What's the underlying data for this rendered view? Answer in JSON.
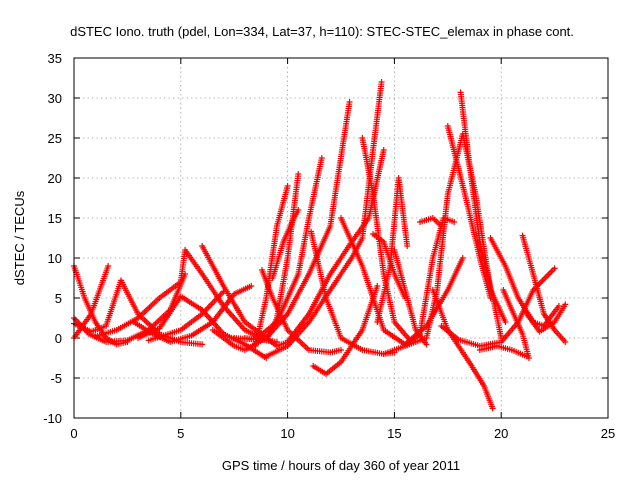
{
  "chart_data": {
    "type": "scatter",
    "title": "dSTEC Iono. truth (pdel, Lon=334, Lat=37, h=110): STEC-STEC_elemax in phase cont.",
    "xlabel": "GPS time / hours of day 360 of year 2011",
    "ylabel": "dSTEC  / TECUs",
    "xlim": [
      0,
      25
    ],
    "ylim": [
      -10,
      35
    ],
    "xticks": [
      0,
      5,
      10,
      15,
      20,
      25
    ],
    "yticks": [
      -10,
      -5,
      0,
      5,
      10,
      15,
      20,
      25,
      30,
      35
    ],
    "grid": true,
    "marker": "+",
    "color": "#ff0000",
    "series": [
      {
        "points": [
          [
            0.0,
            9.0
          ],
          [
            0.5,
            5.0
          ],
          [
            1.0,
            2.0
          ],
          [
            1.5,
            0.0
          ],
          [
            2.0,
            -0.8
          ],
          [
            2.5,
            -0.5
          ]
        ]
      },
      {
        "points": [
          [
            0.0,
            2.5
          ],
          [
            0.7,
            0.5
          ],
          [
            1.5,
            -0.5
          ],
          [
            2.5,
            -0.3
          ],
          [
            3.5,
            1.0
          ],
          [
            4.5,
            3.5
          ],
          [
            5.2,
            8.0
          ]
        ]
      },
      {
        "points": [
          [
            0.0,
            0.0
          ],
          [
            0.8,
            3.0
          ],
          [
            1.6,
            9.0
          ]
        ]
      },
      {
        "points": [
          [
            0.0,
            1.8
          ],
          [
            0.8,
            0.8
          ],
          [
            1.5,
            1.5
          ],
          [
            2.2,
            7.2
          ],
          [
            3.0,
            3.0
          ],
          [
            4.0,
            0.5
          ],
          [
            5.0,
            -0.5
          ],
          [
            6.0,
            -0.8
          ]
        ]
      },
      {
        "points": [
          [
            1.0,
            0.2
          ],
          [
            2.0,
            1.0
          ],
          [
            3.0,
            2.5
          ],
          [
            4.0,
            5.0
          ],
          [
            5.0,
            7.0
          ],
          [
            5.2,
            11.0
          ],
          [
            6.0,
            8.0
          ],
          [
            7.0,
            4.0
          ],
          [
            8.0,
            1.0
          ],
          [
            9.0,
            -0.3
          ],
          [
            9.5,
            -0.5
          ]
        ]
      },
      {
        "points": [
          [
            2.8,
            2.0
          ],
          [
            3.5,
            0.8
          ],
          [
            4.5,
            -0.5
          ],
          [
            5.5,
            0.3
          ],
          [
            6.5,
            2.0
          ],
          [
            7.5,
            5.5
          ],
          [
            8.3,
            6.5
          ]
        ]
      },
      {
        "points": [
          [
            3.0,
            0.0
          ],
          [
            4.0,
            1.2
          ],
          [
            5.0,
            5.2
          ],
          [
            6.0,
            3.5
          ],
          [
            7.0,
            0.5
          ],
          [
            8.0,
            -0.8
          ],
          [
            9.0,
            -2.5
          ]
        ]
      },
      {
        "points": [
          [
            3.5,
            -0.3
          ],
          [
            5.0,
            1.0
          ],
          [
            6.0,
            3.0
          ],
          [
            7.0,
            5.8
          ]
        ]
      },
      {
        "points": [
          [
            6.0,
            11.5
          ],
          [
            7.0,
            6.5
          ],
          [
            8.0,
            2.0
          ],
          [
            9.0,
            0.0
          ],
          [
            9.5,
            -1.0
          ]
        ]
      },
      {
        "points": [
          [
            6.5,
            1.0
          ],
          [
            7.5,
            -1.0
          ],
          [
            8.0,
            -1.5
          ],
          [
            9.0,
            0.0
          ],
          [
            10.0,
            3.0
          ],
          [
            11.0,
            8.0
          ],
          [
            12.0,
            14.0
          ],
          [
            12.9,
            29.5
          ]
        ]
      },
      {
        "points": [
          [
            7.5,
            0.0
          ],
          [
            8.5,
            -0.2
          ],
          [
            9.5,
            2.0
          ],
          [
            10.5,
            8.0
          ],
          [
            11.0,
            15.0
          ],
          [
            11.6,
            22.5
          ]
        ]
      },
      {
        "points": [
          [
            8.0,
            0.0
          ],
          [
            9.0,
            -0.3
          ],
          [
            9.5,
            2.5
          ],
          [
            10.0,
            10.0
          ],
          [
            10.5,
            20.5
          ]
        ]
      },
      {
        "points": [
          [
            8.5,
            -1.0
          ],
          [
            9.0,
            5.0
          ],
          [
            9.5,
            14.0
          ],
          [
            10.0,
            19.0
          ]
        ]
      },
      {
        "points": [
          [
            9.5,
            -1.0
          ],
          [
            10.0,
            -0.5
          ],
          [
            11.0,
            3.0
          ],
          [
            12.0,
            8.0
          ],
          [
            13.0,
            12.0
          ],
          [
            13.8,
            15.0
          ],
          [
            14.5,
            23.5
          ]
        ]
      },
      {
        "points": [
          [
            9.0,
            -2.3
          ],
          [
            10.0,
            -1.0
          ],
          [
            11.0,
            2.0
          ],
          [
            12.0,
            6.0
          ],
          [
            13.0,
            10.0
          ],
          [
            13.5,
            12.5
          ],
          [
            14.0,
            23.5
          ],
          [
            14.4,
            32.0
          ]
        ]
      },
      {
        "points": [
          [
            9.3,
            7.5
          ],
          [
            9.8,
            12.0
          ],
          [
            10.3,
            15.0
          ],
          [
            10.5,
            16.0
          ]
        ]
      },
      {
        "points": [
          [
            8.8,
            8.5
          ],
          [
            9.3,
            5.0
          ],
          [
            10.0,
            1.0
          ],
          [
            11.0,
            -1.5
          ],
          [
            12.0,
            -1.8
          ],
          [
            12.5,
            -1.5
          ]
        ]
      },
      {
        "points": [
          [
            11.2,
            -3.5
          ],
          [
            11.8,
            -4.5
          ],
          [
            12.5,
            -3.0
          ],
          [
            13.5,
            1.0
          ],
          [
            14.2,
            6.5
          ]
        ]
      },
      {
        "points": [
          [
            11.1,
            13.3
          ],
          [
            11.8,
            5.0
          ],
          [
            12.5,
            0.0
          ],
          [
            13.5,
            -1.5
          ],
          [
            14.5,
            -2.0
          ],
          [
            15.0,
            -1.8
          ]
        ]
      },
      {
        "points": [
          [
            12.5,
            15.0
          ],
          [
            13.5,
            9.0
          ],
          [
            14.5,
            1.0
          ],
          [
            15.5,
            -0.8
          ],
          [
            16.5,
            1.5
          ],
          [
            17.5,
            6.0
          ],
          [
            18.2,
            10.0
          ]
        ]
      },
      {
        "points": [
          [
            13.5,
            25.0
          ],
          [
            14.0,
            18.0
          ],
          [
            14.5,
            8.0
          ],
          [
            15.0,
            2.0
          ],
          [
            15.8,
            -0.5
          ]
        ]
      },
      {
        "points": [
          [
            14.0,
            13.0
          ],
          [
            14.5,
            12.0
          ],
          [
            15.0,
            8.0
          ],
          [
            15.5,
            5.0
          ]
        ]
      },
      {
        "points": [
          [
            14.2,
            2.0
          ],
          [
            14.8,
            9.0
          ],
          [
            15.2,
            20.0
          ],
          [
            15.6,
            11.5
          ]
        ]
      },
      {
        "points": [
          [
            14.5,
            -2.0
          ],
          [
            15.5,
            -1.0
          ],
          [
            16.5,
            0.0
          ],
          [
            17.0,
            6.0
          ],
          [
            17.5,
            18.0
          ],
          [
            18.2,
            25.5
          ],
          [
            18.8,
            18.0
          ],
          [
            19.5,
            6.0
          ],
          [
            20.2,
            2.0
          ]
        ]
      },
      {
        "points": [
          [
            15.5,
            -1.0
          ],
          [
            16.2,
            0.5
          ],
          [
            16.8,
            10.0
          ],
          [
            17.3,
            15.0
          ],
          [
            17.8,
            14.5
          ]
        ]
      },
      {
        "points": [
          [
            16.2,
            14.5
          ],
          [
            16.8,
            15.0
          ],
          [
            17.2,
            14.0
          ]
        ]
      },
      {
        "points": [
          [
            15.0,
            11.0
          ],
          [
            15.5,
            6.0
          ],
          [
            16.0,
            1.0
          ],
          [
            16.5,
            -0.8
          ]
        ]
      },
      {
        "points": [
          [
            17.2,
            1.5
          ],
          [
            18.0,
            -0.2
          ],
          [
            19.0,
            -1.0
          ],
          [
            20.0,
            -0.5
          ],
          [
            20.8,
            2.0
          ],
          [
            21.5,
            6.0
          ],
          [
            22.5,
            8.7
          ]
        ]
      },
      {
        "points": [
          [
            18.1,
            30.7
          ],
          [
            18.5,
            22.0
          ],
          [
            19.0,
            12.0
          ],
          [
            19.7,
            4.0
          ],
          [
            20.0,
            0.0
          ]
        ]
      },
      {
        "points": [
          [
            17.5,
            26.5
          ],
          [
            18.3,
            18.0
          ],
          [
            19.0,
            10.0
          ],
          [
            19.5,
            5.0
          ]
        ]
      },
      {
        "points": [
          [
            16.8,
            6.0
          ],
          [
            17.5,
            1.0
          ],
          [
            18.5,
            -3.0
          ],
          [
            19.2,
            -6.0
          ],
          [
            19.6,
            -8.8
          ]
        ]
      },
      {
        "points": [
          [
            19.5,
            12.5
          ],
          [
            19.8,
            11.0
          ],
          [
            20.2,
            9.0
          ],
          [
            20.8,
            5.0
          ],
          [
            21.5,
            2.0
          ],
          [
            22.0,
            1.5
          ],
          [
            22.7,
            4.0
          ]
        ]
      },
      {
        "points": [
          [
            20.1,
            6.0
          ],
          [
            20.5,
            3.5
          ],
          [
            21.0,
            0.5
          ],
          [
            21.3,
            -2.5
          ]
        ]
      },
      {
        "points": [
          [
            21.0,
            12.8
          ],
          [
            21.5,
            8.0
          ],
          [
            22.0,
            3.0
          ],
          [
            22.5,
            1.0
          ],
          [
            23.0,
            -0.5
          ]
        ]
      },
      {
        "points": [
          [
            19.0,
            -1.5
          ],
          [
            19.8,
            -1.0
          ],
          [
            20.5,
            -1.5
          ],
          [
            21.2,
            -2.3
          ]
        ]
      },
      {
        "points": [
          [
            21.2,
            3.0
          ],
          [
            21.8,
            0.8
          ],
          [
            22.5,
            2.0
          ],
          [
            23.0,
            4.2
          ]
        ]
      }
    ]
  }
}
